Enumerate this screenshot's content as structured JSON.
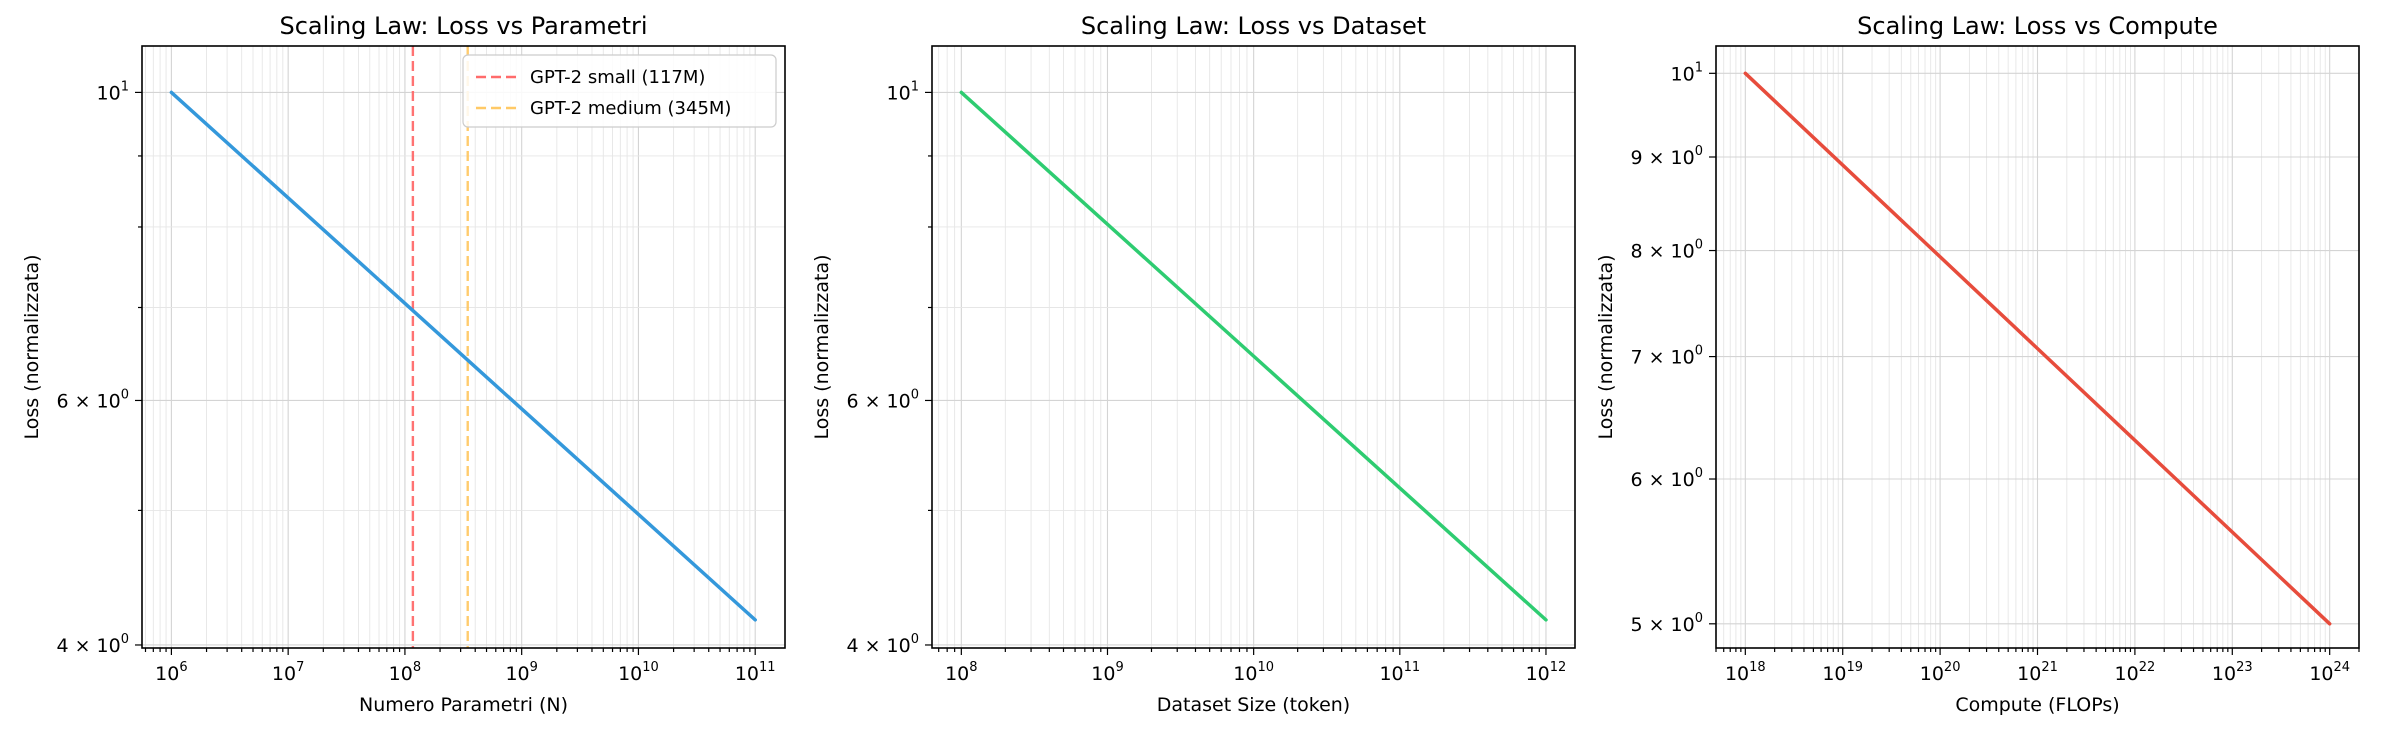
{
  "chart_data": [
    {
      "type": "line",
      "title": "Scaling Law: Loss vs Parametri",
      "xlabel": "Numero Parametri (N)",
      "ylabel": "Loss (normalizzata)",
      "xscale": "log",
      "yscale": "log",
      "xlim": [
        560000,
        180000000000
      ],
      "ylim": [
        3.98,
        10.8
      ],
      "x_ticks": [
        {
          "value": 1000000,
          "base": "10",
          "exp": "6"
        },
        {
          "value": 10000000,
          "base": "10",
          "exp": "7"
        },
        {
          "value": 100000000,
          "base": "10",
          "exp": "8"
        },
        {
          "value": 1000000000,
          "base": "10",
          "exp": "9"
        },
        {
          "value": 10000000000,
          "base": "10",
          "exp": "10"
        },
        {
          "value": 100000000000,
          "base": "10",
          "exp": "11"
        }
      ],
      "y_ticks": [
        {
          "value": 10,
          "base": "10",
          "exp": "1"
        },
        {
          "value": 6,
          "base": "6 × 10",
          "exp": "0"
        },
        {
          "value": 4,
          "base": "4 × 10",
          "exp": "0"
        }
      ],
      "grid": true,
      "series": [
        {
          "color": "#3498db",
          "x": [
            1000000,
            100000000000
          ],
          "y": [
            10.0,
            4.17
          ]
        }
      ],
      "reference_lines": [
        {
          "x": 117000000,
          "label": "GPT-2 small (117M)",
          "color": "#ff6b6b"
        },
        {
          "x": 345000000,
          "label": "GPT-2 medium (345M)",
          "color": "#ffc966"
        }
      ],
      "legend": {
        "position": "top-right"
      }
    },
    {
      "type": "line",
      "title": "Scaling Law: Loss vs Dataset",
      "xlabel": "Dataset Size (token)",
      "ylabel": "Loss (normalizzata)",
      "xscale": "log",
      "yscale": "log",
      "xlim": [
        63000000,
        1580000000000
      ],
      "ylim": [
        3.98,
        10.8
      ],
      "x_ticks": [
        {
          "value": 100000000,
          "base": "10",
          "exp": "8"
        },
        {
          "value": 1000000000,
          "base": "10",
          "exp": "9"
        },
        {
          "value": 10000000000,
          "base": "10",
          "exp": "10"
        },
        {
          "value": 100000000000,
          "base": "10",
          "exp": "11"
        },
        {
          "value": 1000000000000,
          "base": "10",
          "exp": "12"
        }
      ],
      "y_ticks": [
        {
          "value": 10,
          "base": "10",
          "exp": "1"
        },
        {
          "value": 6,
          "base": "6 × 10",
          "exp": "0"
        },
        {
          "value": 4,
          "base": "4 × 10",
          "exp": "0"
        }
      ],
      "grid": true,
      "series": [
        {
          "color": "#2ecc71",
          "x": [
            100000000,
            1000000000000
          ],
          "y": [
            10.0,
            4.17
          ]
        }
      ]
    },
    {
      "type": "line",
      "title": "Scaling Law: Loss vs Compute",
      "xlabel": "Compute (FLOPs)",
      "ylabel": "Loss (normalizzata)",
      "xscale": "log",
      "yscale": "log",
      "xlim": [
        500000000000000000,
        2000000000000000000000000
      ],
      "ylim": [
        4.85,
        10.35
      ],
      "x_ticks": [
        {
          "value": 1e+18,
          "base": "10",
          "exp": "18"
        },
        {
          "value": 1e+19,
          "base": "10",
          "exp": "19"
        },
        {
          "value": 1e+20,
          "base": "10",
          "exp": "20"
        },
        {
          "value": 1e+21,
          "base": "10",
          "exp": "21"
        },
        {
          "value": 1e+22,
          "base": "10",
          "exp": "22"
        },
        {
          "value": 1e+23,
          "base": "10",
          "exp": "23"
        },
        {
          "value": 1e+24,
          "base": "10",
          "exp": "24"
        }
      ],
      "y_ticks": [
        {
          "value": 10,
          "base": "10",
          "exp": "1"
        },
        {
          "value": 9,
          "base": "9 × 10",
          "exp": "0"
        },
        {
          "value": 8,
          "base": "8 × 10",
          "exp": "0"
        },
        {
          "value": 7,
          "base": "7 × 10",
          "exp": "0"
        },
        {
          "value": 6,
          "base": "6 × 10",
          "exp": "0"
        },
        {
          "value": 5,
          "base": "5 × 10",
          "exp": "0"
        }
      ],
      "grid": true,
      "series": [
        {
          "color": "#e74c3c",
          "x": [
            1e+18,
            1e+24
          ],
          "y": [
            10.0,
            5.0
          ]
        }
      ]
    }
  ]
}
